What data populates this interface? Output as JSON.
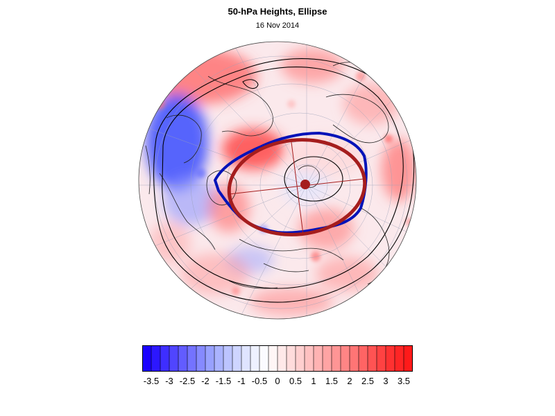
{
  "figure": {
    "title": "50-hPa Heights, Ellipse",
    "subtitle": "16 Nov 2014"
  },
  "colors": {
    "ellipse_fit": "#a51d1d",
    "contour_edge": "#0012b8",
    "contour_line": "#000000",
    "negative_max": "#1a00ff",
    "positive_max": "#ff1a1a"
  },
  "colorbar": {
    "tick_labels": [
      "-3.5",
      "-3",
      "-2.5",
      "-2",
      "-1.5",
      "-1",
      "-0.5",
      "0",
      "0.5",
      "1",
      "1.5",
      "2",
      "2.5",
      "3",
      "3.5"
    ],
    "levels_min": -3.75,
    "levels_max": 3.75,
    "levels_step": 0.25,
    "colors": [
      "#1a00ff",
      "#2c17ff",
      "#3e2eff",
      "#5045ff",
      "#625cff",
      "#7473ff",
      "#868aff",
      "#98a1ff",
      "#aab3ff",
      "#bcc4ff",
      "#ced5ff",
      "#dfe4ff",
      "#eef1ff",
      "#fbfbff",
      "#fff6f6",
      "#ffe9e9",
      "#ffdcdc",
      "#ffcfcf",
      "#ffc1c1",
      "#ffb3b3",
      "#ffa4a4",
      "#ff9595",
      "#ff8585",
      "#ff7575",
      "#ff6464",
      "#ff5353",
      "#ff4242",
      "#ff3131",
      "#ff2525",
      "#ff1a1a"
    ]
  },
  "map": {
    "projection": "orthographic-polar-north",
    "features": [
      "height-anomaly-shading",
      "coastlines",
      "graticule",
      "contour-ellipse",
      "fitted-ellipse",
      "vortex-centroid"
    ]
  }
}
